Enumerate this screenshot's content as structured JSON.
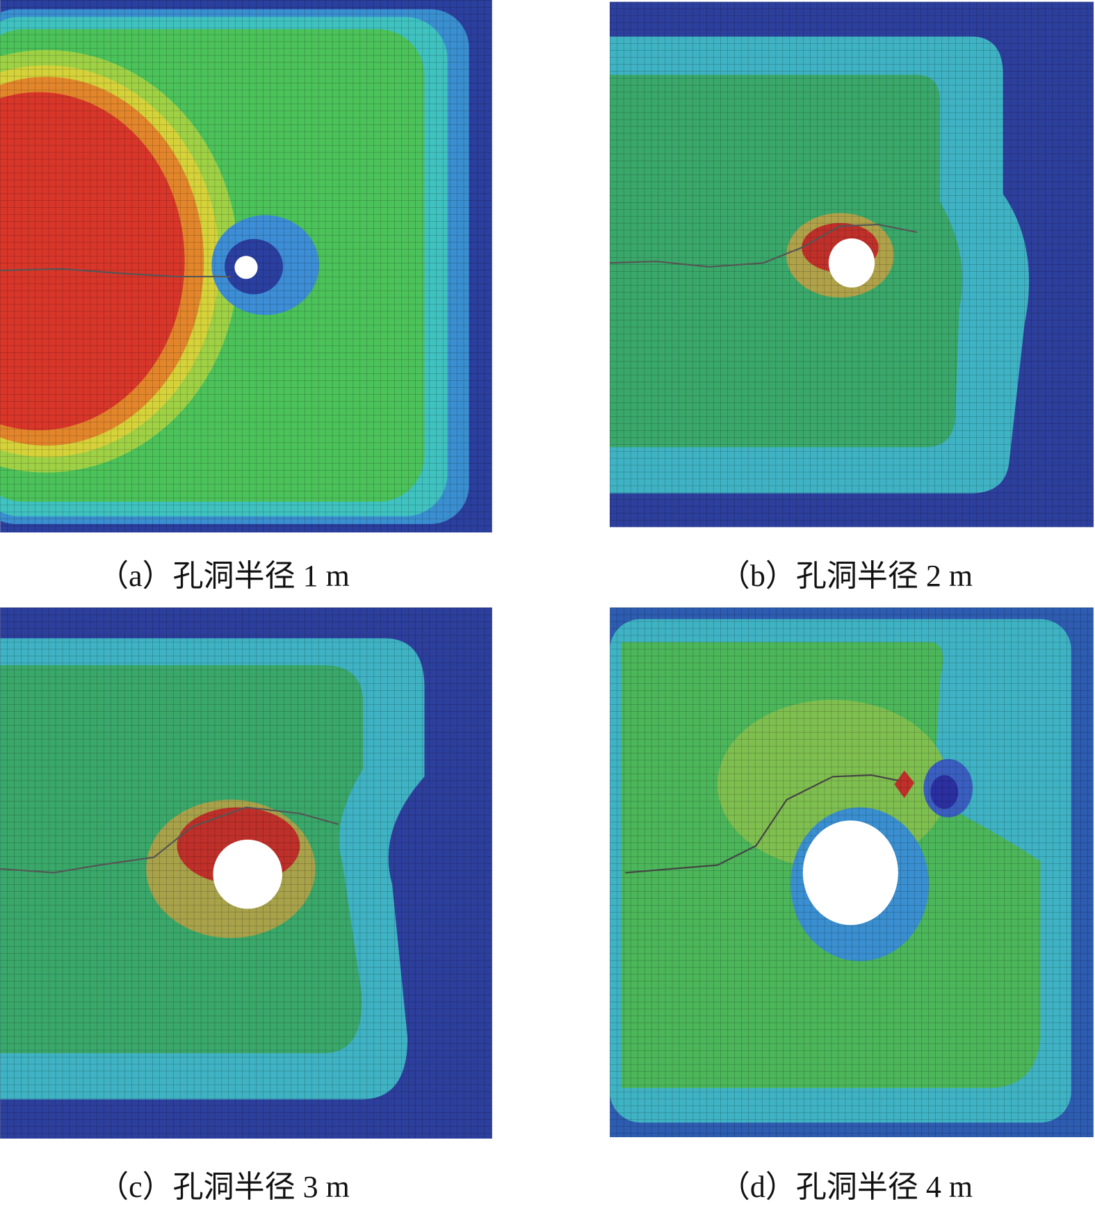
{
  "panels": [
    {
      "caption": "（a）孔洞半径 1 m"
    },
    {
      "caption": "（b）孔洞半径 2 m"
    },
    {
      "caption": "（c）孔洞半径 3 m"
    },
    {
      "caption": "（d）孔洞半径 4 m"
    }
  ]
}
